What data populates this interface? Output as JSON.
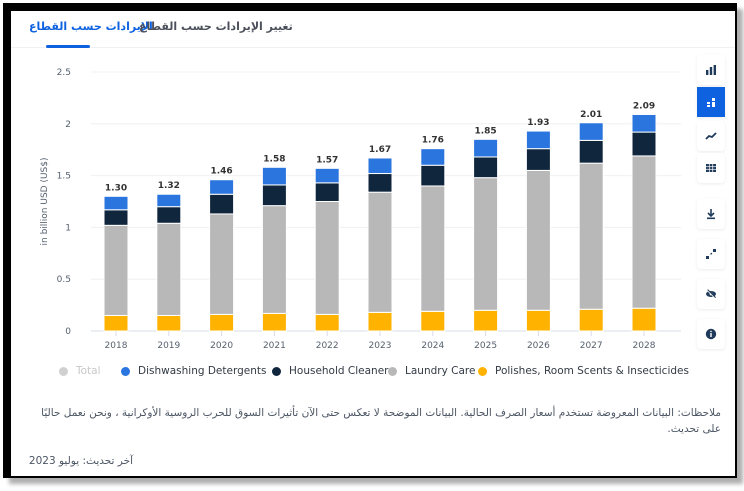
{
  "tabs": [
    {
      "label": "الإيرادات حسب القطاع",
      "active": true
    },
    {
      "label": "تغيير الإيرادات حسب القطاع",
      "active": false
    }
  ],
  "toolbar": {
    "buttons": [
      {
        "icon": "bar-chart-icon",
        "active": false
      },
      {
        "icon": "stacked-bar-chart-icon",
        "active": true
      },
      {
        "icon": "line-chart-icon",
        "active": false
      },
      {
        "icon": "table-icon",
        "active": false
      },
      {
        "icon": "download-icon",
        "active": false
      },
      {
        "icon": "fullscreen-icon",
        "active": false
      },
      {
        "icon": "hide-icon",
        "active": false
      },
      {
        "icon": "info-icon",
        "active": false
      }
    ]
  },
  "chart_data": {
    "type": "bar",
    "stacked": true,
    "title": "",
    "xlabel": "",
    "ylabel": "in billion USD (US$)",
    "ylim": [
      0,
      2.5
    ],
    "yticks": [
      0,
      0.5,
      1,
      1.5,
      2,
      2.5
    ],
    "ytick_labels": [
      "0",
      "0.5",
      "1",
      "1.5",
      "2",
      "2.5"
    ],
    "grid": true,
    "legend_position": "bottom",
    "categories": [
      "2018",
      "2019",
      "2020",
      "2021",
      "2022",
      "2023",
      "2024",
      "2025",
      "2026",
      "2027",
      "2028"
    ],
    "totals": [
      1.3,
      1.32,
      1.46,
      1.58,
      1.57,
      1.67,
      1.76,
      1.85,
      1.93,
      2.01,
      2.09
    ],
    "total_labels": [
      "1.30",
      "1.32",
      "1.46",
      "1.58",
      "1.57",
      "1.67",
      "1.76",
      "1.85",
      "1.93",
      "2.01",
      "2.09"
    ],
    "series": [
      {
        "name": "Polishes, Room Scents & Insecticides",
        "color": "#ffb300",
        "values": [
          0.15,
          0.15,
          0.16,
          0.17,
          0.16,
          0.18,
          0.19,
          0.2,
          0.2,
          0.21,
          0.22
        ]
      },
      {
        "name": "Laundry Care",
        "color": "#b8b8b8",
        "values": [
          0.87,
          0.89,
          0.97,
          1.04,
          1.09,
          1.16,
          1.21,
          1.28,
          1.35,
          1.41,
          1.47
        ]
      },
      {
        "name": "Household Cleaners",
        "color": "#0f263d",
        "values": [
          0.15,
          0.16,
          0.19,
          0.2,
          0.18,
          0.18,
          0.2,
          0.2,
          0.21,
          0.22,
          0.23
        ]
      },
      {
        "name": "Dishwashing Detergents",
        "color": "#2a75de",
        "values": [
          0.13,
          0.12,
          0.14,
          0.17,
          0.14,
          0.15,
          0.16,
          0.17,
          0.17,
          0.17,
          0.17
        ]
      }
    ],
    "legend": [
      {
        "name": "Total",
        "color": "#d0d0d0",
        "disabled": true
      },
      {
        "name": "Dishwashing Detergents",
        "color": "#2a75de",
        "disabled": false
      },
      {
        "name": "Household Cleaners",
        "color": "#0f263d",
        "disabled": false
      },
      {
        "name": "Laundry Care",
        "color": "#b8b8b8",
        "disabled": false
      },
      {
        "name": "Polishes, Room Scents & Insecticides",
        "color": "#ffb300",
        "disabled": false
      }
    ]
  },
  "notes": "ملاحظات: البيانات المعروضة تستخدم أسعار الصرف الحالية. البيانات الموضحة لا تعكس حتى الآن تأثيرات السوق للحرب الروسية الأوكرانية ، ونحن نعمل حاليًا على تحديث.",
  "last_updated": "آخر تحديث: يوليو 2023",
  "colors": {
    "accent": "#0e62e0"
  }
}
